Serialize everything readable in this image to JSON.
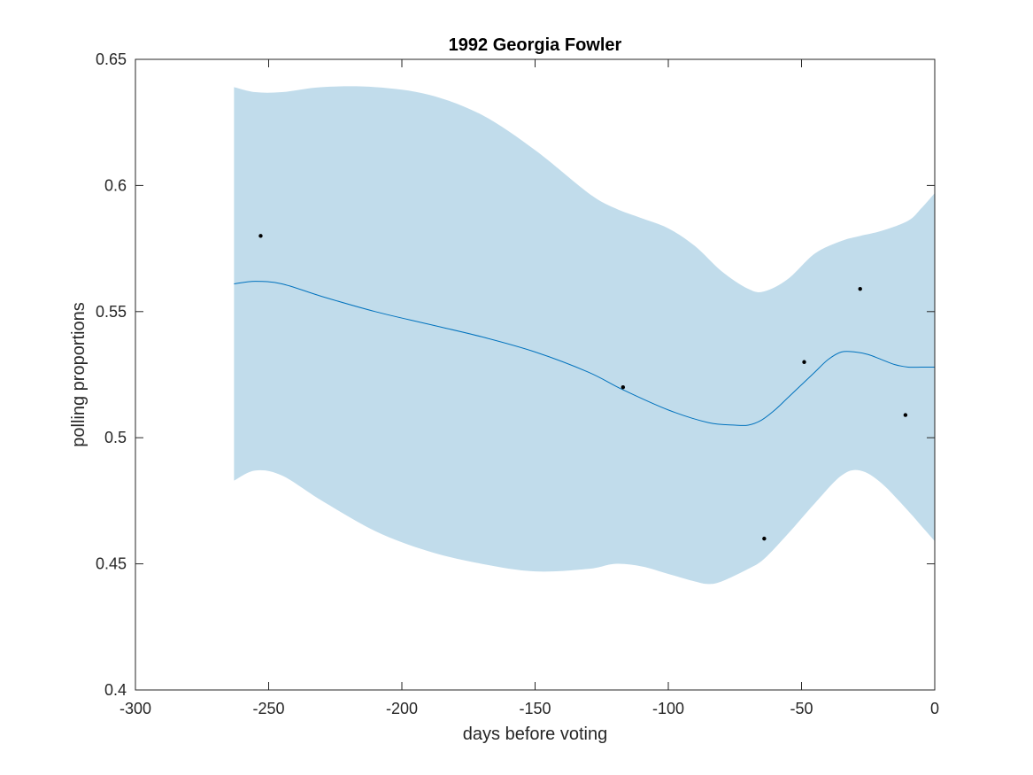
{
  "chart_data": {
    "type": "line",
    "title": "1992 Georgia Fowler",
    "xlabel": "days before voting",
    "ylabel": "polling proportions",
    "xlim": [
      -300,
      0
    ],
    "ylim": [
      0.4,
      0.65
    ],
    "xticks": [
      -300,
      -250,
      -200,
      -150,
      -100,
      -50,
      0
    ],
    "yticks": [
      0.4,
      0.45,
      0.5,
      0.55,
      0.6,
      0.65
    ],
    "xtick_labels": [
      "-300",
      "-250",
      "-200",
      "-150",
      "-100",
      "-50",
      "0"
    ],
    "ytick_labels": [
      "0.4",
      "0.45",
      "0.5",
      "0.55",
      "0.6",
      "0.65"
    ],
    "grid": false,
    "colors": {
      "mean": "#0072BD",
      "band": "#C1DCEB",
      "points": "#000000",
      "axes": "#262626"
    },
    "points": {
      "x": [
        -253,
        -117,
        -64,
        -49,
        -28,
        -11
      ],
      "y": [
        0.58,
        0.52,
        0.46,
        0.53,
        0.559,
        0.509
      ]
    },
    "mean": {
      "x": [
        -263,
        -255,
        -245,
        -230,
        -210,
        -190,
        -170,
        -150,
        -130,
        -117,
        -100,
        -85,
        -75,
        -70,
        -65,
        -60,
        -55,
        -50,
        -45,
        -40,
        -35,
        -30,
        -25,
        -20,
        -15,
        -10,
        -5,
        0
      ],
      "y": [
        0.561,
        0.562,
        0.561,
        0.556,
        0.55,
        0.545,
        0.54,
        0.534,
        0.526,
        0.519,
        0.511,
        0.506,
        0.505,
        0.505,
        0.507,
        0.511,
        0.516,
        0.521,
        0.526,
        0.531,
        0.534,
        0.534,
        0.533,
        0.531,
        0.529,
        0.528,
        0.528,
        0.528
      ]
    },
    "band_upper": {
      "x": [
        -263,
        -255,
        -245,
        -230,
        -210,
        -190,
        -170,
        -150,
        -130,
        -120,
        -110,
        -100,
        -90,
        -80,
        -70,
        -64,
        -55,
        -45,
        -35,
        -28,
        -20,
        -10,
        -5,
        0
      ],
      "y": [
        0.639,
        0.637,
        0.637,
        0.639,
        0.639,
        0.636,
        0.628,
        0.614,
        0.597,
        0.591,
        0.587,
        0.583,
        0.576,
        0.566,
        0.559,
        0.558,
        0.563,
        0.573,
        0.578,
        0.58,
        0.582,
        0.586,
        0.591,
        0.597
      ]
    },
    "band_lower": {
      "x": [
        -263,
        -255,
        -245,
        -230,
        -210,
        -190,
        -170,
        -150,
        -130,
        -120,
        -110,
        -100,
        -90,
        -85,
        -80,
        -70,
        -64,
        -55,
        -45,
        -35,
        -28,
        -20,
        -10,
        -5,
        0
      ],
      "y": [
        0.483,
        0.487,
        0.485,
        0.475,
        0.463,
        0.455,
        0.45,
        0.447,
        0.448,
        0.45,
        0.449,
        0.446,
        0.443,
        0.442,
        0.443,
        0.448,
        0.452,
        0.462,
        0.474,
        0.485,
        0.487,
        0.482,
        0.471,
        0.465,
        0.459
      ]
    }
  }
}
